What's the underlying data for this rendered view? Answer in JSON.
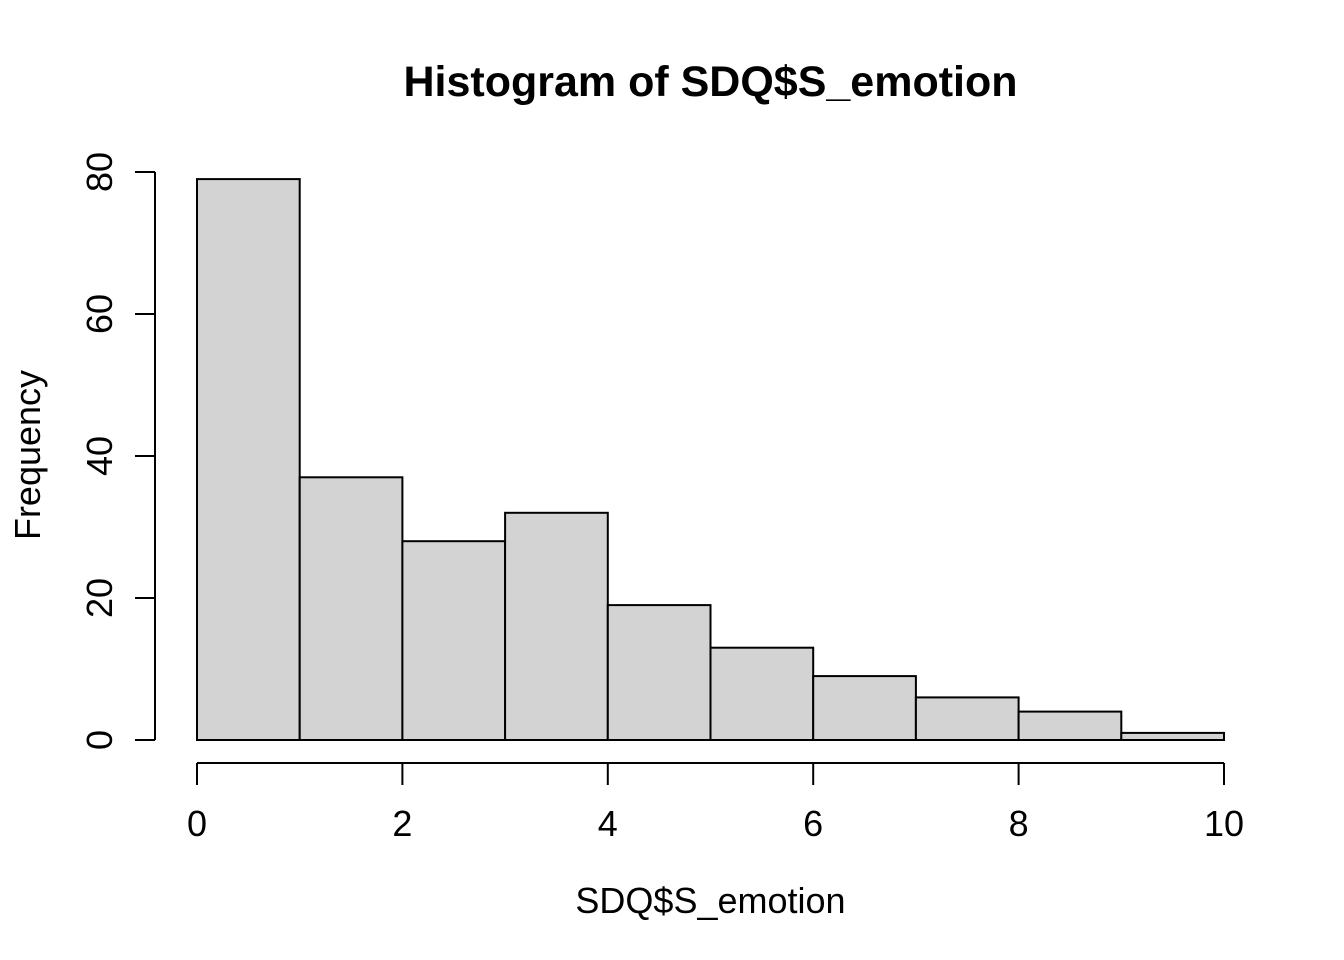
{
  "figure": {
    "background": "#ffffff"
  },
  "chart_data": {
    "type": "bar",
    "chart_kind": "histogram",
    "title": "Histogram of SDQ$S_emotion",
    "xlabel": "SDQ$S_emotion",
    "ylabel": "Frequency",
    "bin_breaks": [
      0,
      1,
      2,
      3,
      4,
      5,
      6,
      7,
      8,
      9,
      10
    ],
    "counts": [
      79,
      37,
      28,
      32,
      19,
      13,
      9,
      6,
      4,
      1
    ],
    "x_ticks": [
      0,
      2,
      4,
      6,
      8,
      10
    ],
    "y_ticks": [
      0,
      20,
      40,
      60,
      80
    ],
    "xlim": [
      0,
      10
    ],
    "ylim": [
      0,
      80
    ],
    "grid": false,
    "legend": "none",
    "bar_fill": "#d3d3d3",
    "bar_stroke": "#000000",
    "axis_color": "#000000",
    "text_color": "#000000"
  }
}
